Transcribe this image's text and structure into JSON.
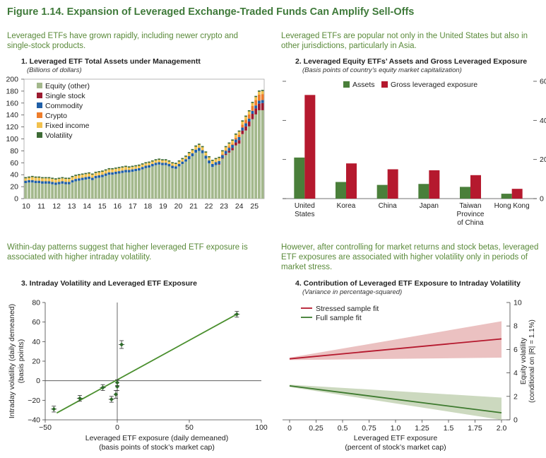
{
  "figure_title": "Figure 1.14. Expansion of Leveraged Exchange-Traded Funds Can Amplify Sell-Offs",
  "captions": {
    "c1": "Leveraged ETFs have grown rapidly, including newer crypto and single-stock products.",
    "c2": "Leveraged ETFs are popular not only in the United States but also in other jurisdictions, particularly in Asia.",
    "c3": "Within-day patterns suggest that higher leveraged ETF exposure is associated with higher intraday volatility.",
    "c4": "However, after controlling for market returns and stock betas, leveraged ETF exposures are associated with higher volatility only in periods of market stress."
  },
  "colors": {
    "equity": "#a3b88c",
    "single_stock": "#9b1b30",
    "commodity": "#1f5fa8",
    "crypto": "#ee7d2b",
    "fixed_income": "#f2c14e",
    "volatility": "#3d6b35",
    "assets": "#4a7f3a",
    "gross": "#b5192e",
    "stressed_line": "#b5192e",
    "stressed_band": "#e8b6b6",
    "full_line": "#3d7a2e",
    "full_band": "#c3d2b4",
    "scatter_line": "#4a8f2e",
    "title_green": "#3f7a3a"
  },
  "chart_data": [
    {
      "type": "bar",
      "stacked": true,
      "title": "1. Leveraged ETF Total Assets under Managementt",
      "units": "(Billions of dollars)",
      "ylim": [
        0,
        200
      ],
      "yticks": [
        0,
        20,
        40,
        60,
        80,
        100,
        120,
        140,
        160,
        180,
        200
      ],
      "xtick_labels": [
        "10",
        "11",
        "12",
        "13",
        "14",
        "15",
        "16",
        "17",
        "18",
        "19",
        "20",
        "21",
        "22",
        "23",
        "24",
        "25"
      ],
      "legend": [
        "Equity (other)",
        "Single stock",
        "Commodity",
        "Crypto",
        "Fixed income",
        "Volatility"
      ],
      "series": [
        {
          "name": "Equity (other)",
          "values": [
            26,
            27,
            27,
            26,
            26,
            25,
            25,
            25,
            24,
            23,
            24,
            25,
            24,
            24,
            27,
            29,
            30,
            31,
            32,
            33,
            31,
            34,
            35,
            36,
            38,
            40,
            40,
            41,
            42,
            43,
            44,
            44,
            45,
            46,
            47,
            49,
            51,
            52,
            54,
            56,
            57,
            56,
            56,
            54,
            51,
            50,
            54,
            58,
            62,
            66,
            71,
            77,
            80,
            76,
            67,
            59,
            53,
            56,
            57,
            67,
            73,
            77,
            81,
            89,
            92,
            108,
            114,
            121,
            133,
            141,
            148,
            148
          ]
        },
        {
          "name": "Single stock",
          "values": [
            0,
            0,
            0,
            0,
            0,
            0,
            0,
            0,
            0,
            0,
            0,
            0,
            0,
            0,
            0,
            0,
            0,
            0,
            0,
            0,
            0,
            0,
            0,
            0,
            0,
            0,
            0,
            0,
            0,
            0,
            0,
            0,
            0,
            0,
            0,
            0,
            0,
            0,
            0,
            0,
            0,
            0,
            0,
            0,
            0,
            0,
            0,
            0,
            0,
            0,
            0,
            0,
            0,
            0,
            0,
            0,
            0,
            0,
            1,
            1,
            2,
            3,
            4,
            5,
            6,
            6,
            7,
            8,
            9,
            10,
            11,
            12
          ]
        },
        {
          "name": "Commodity",
          "values": [
            4,
            4,
            4,
            4,
            4,
            4,
            4,
            4,
            4,
            4,
            4,
            4,
            4,
            4,
            4,
            4,
            4,
            4,
            4,
            4,
            4,
            4,
            4,
            4,
            4,
            4,
            4,
            4,
            4,
            4,
            4,
            4,
            4,
            4,
            4,
            4,
            4,
            4,
            4,
            4,
            4,
            4,
            4,
            4,
            4,
            4,
            4,
            4,
            4,
            5,
            5,
            5,
            5,
            5,
            5,
            5,
            5,
            5,
            5,
            5,
            5,
            5,
            5,
            5,
            5,
            5,
            5,
            5,
            5,
            5,
            5,
            5
          ]
        },
        {
          "name": "Crypto",
          "values": [
            0,
            0,
            0,
            0,
            0,
            0,
            0,
            0,
            0,
            0,
            0,
            0,
            0,
            0,
            0,
            0,
            0,
            0,
            0,
            0,
            0,
            0,
            0,
            0,
            0,
            0,
            0,
            0,
            0,
            0,
            0,
            0,
            0,
            0,
            0,
            0,
            0,
            0,
            0,
            0,
            0,
            0,
            0,
            0,
            0,
            0,
            0,
            0,
            0,
            0,
            0,
            0,
            0,
            0,
            0,
            0,
            0,
            0,
            0,
            1,
            1,
            2,
            2,
            3,
            4,
            5,
            6,
            7,
            8,
            9,
            10,
            10
          ]
        },
        {
          "name": "Fixed income",
          "values": [
            4,
            4,
            5,
            5,
            5,
            5,
            5,
            5,
            5,
            5,
            5,
            5,
            5,
            5,
            5,
            5,
            5,
            5,
            5,
            5,
            5,
            5,
            5,
            5,
            5,
            5,
            5,
            5,
            5,
            5,
            5,
            4,
            4,
            4,
            4,
            4,
            4,
            4,
            4,
            4,
            4,
            4,
            4,
            4,
            4,
            4,
            4,
            4,
            4,
            5,
            5,
            5,
            5,
            5,
            5,
            5,
            5,
            5,
            5,
            5,
            5,
            5,
            5,
            5,
            5,
            5,
            5,
            5,
            5,
            5,
            5,
            5
          ]
        },
        {
          "name": "Volatility",
          "values": [
            2,
            2,
            2,
            2,
            2,
            2,
            2,
            2,
            2,
            2,
            2,
            2,
            2,
            2,
            2,
            2,
            2,
            2,
            2,
            2,
            2,
            2,
            2,
            2,
            2,
            2,
            2,
            2,
            2,
            2,
            2,
            2,
            2,
            2,
            2,
            2,
            2,
            2,
            2,
            2,
            2,
            2,
            2,
            2,
            2,
            2,
            2,
            2,
            2,
            2,
            2,
            2,
            2,
            2,
            2,
            2,
            2,
            2,
            2,
            2,
            2,
            2,
            2,
            2,
            2,
            2,
            2,
            2,
            2,
            2,
            2,
            2
          ]
        }
      ]
    },
    {
      "type": "bar",
      "title": "2. Leveraged Equity ETFs’ Assets and Gross Leveraged Exposure",
      "units": "(Basis points of country’s equity market capitalization)",
      "ylim": [
        0,
        60
      ],
      "yticks": [
        0,
        20,
        40,
        60
      ],
      "categories": [
        [
          "United",
          "States"
        ],
        [
          "Korea"
        ],
        [
          "China"
        ],
        [
          "Japan"
        ],
        [
          "Taiwan",
          "Province",
          "of China"
        ],
        [
          "Hong Kong"
        ]
      ],
      "series": [
        {
          "name": "Assets",
          "values": [
            21,
            8.5,
            7,
            7.5,
            6,
            2.5
          ]
        },
        {
          "name": "Gross leveraged exposure",
          "values": [
            53,
            18,
            15,
            14.5,
            12,
            5
          ]
        }
      ]
    },
    {
      "type": "scatter",
      "title": "3. Intraday Volatility and Leveraged ETF Exposure",
      "xlabel": [
        "Leveraged ETF exposure (daily demeaned)",
        "(basis points of stock’s market cap)"
      ],
      "ylabel": [
        "Intraday volatility (daily demeaned)",
        "(basis points)"
      ],
      "xlim": [
        -50,
        100
      ],
      "ylim": [
        -40,
        80
      ],
      "xticks": [
        -50,
        0,
        50,
        100
      ],
      "yticks": [
        -40,
        -20,
        0,
        20,
        40,
        60,
        80
      ],
      "points": [
        {
          "x": -44,
          "y": -29,
          "xerr": 2,
          "yerr": 3
        },
        {
          "x": -26,
          "y": -18,
          "xerr": 2,
          "yerr": 3
        },
        {
          "x": -10,
          "y": -7,
          "xerr": 2,
          "yerr": 3
        },
        {
          "x": -4,
          "y": -19,
          "xerr": 2,
          "yerr": 3
        },
        {
          "x": -1,
          "y": -14,
          "xerr": 1.5,
          "yerr": 4
        },
        {
          "x": 0,
          "y": -6,
          "xerr": 1.5,
          "yerr": 4
        },
        {
          "x": 0,
          "y": -2,
          "xerr": 1,
          "yerr": 3
        },
        {
          "x": 3,
          "y": 37,
          "xerr": 2,
          "yerr": 4
        },
        {
          "x": 83,
          "y": 68,
          "xerr": 2,
          "yerr": 3
        }
      ],
      "fit_line": [
        [
          -42,
          -33
        ],
        [
          83,
          68
        ]
      ]
    },
    {
      "type": "line",
      "title": "4. Contribution of Leveraged ETF Exposure to Intraday Volatility",
      "units": "(Variance in percentage-squared)",
      "xlabel": [
        "Leveraged ETF exposure",
        "(percent of stock’s market cap)"
      ],
      "ylabel": [
        "Equity volatility",
        "(conditional on |R| = 1.1%)"
      ],
      "xlim": [
        0,
        2.0
      ],
      "ylim": [
        0,
        10
      ],
      "xticks": [
        0,
        0.25,
        0.5,
        0.75,
        1.0,
        1.25,
        1.5,
        1.75,
        2.0
      ],
      "xtick_labels": [
        "0",
        "0.25",
        "0.5",
        "0.75",
        "1.0",
        "1.25",
        "1.5",
        "1.75",
        "2.0"
      ],
      "yticks": [
        0,
        2,
        4,
        6,
        8,
        10
      ],
      "series": [
        {
          "name": "Stressed sample fit",
          "x": [
            0,
            2.0
          ],
          "y": [
            5.2,
            6.9
          ],
          "lower": [
            5.1,
            5.3
          ],
          "upper": [
            5.3,
            8.4
          ]
        },
        {
          "name": "Full sample fit",
          "x": [
            0,
            2.0
          ],
          "y": [
            2.9,
            0.6
          ],
          "lower": [
            2.8,
            0.0
          ],
          "upper": [
            3.0,
            1.9
          ]
        }
      ]
    }
  ]
}
